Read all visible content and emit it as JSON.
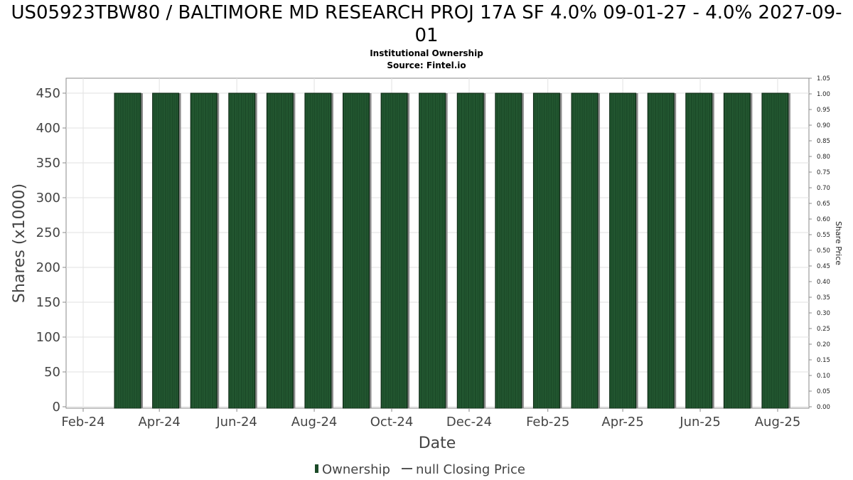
{
  "chart_data": {
    "type": "bar",
    "title": "US05923TBW80 / BALTIMORE MD RESEARCH PROJ 17A SF 4.0% 09-01-27 - 4.0% 2027-09-01",
    "subtitle_1": "Institutional Ownership",
    "subtitle_2": "Source: Fintel.io",
    "xlabel": "Date",
    "ylabel": "Shares (x1000)",
    "y2label": "Share Price",
    "ylim": [
      0,
      470
    ],
    "yticks": [
      0,
      50,
      100,
      150,
      200,
      250,
      300,
      350,
      400,
      450
    ],
    "y2lim": [
      0,
      1.05
    ],
    "y2ticks": [
      "0.00",
      "0.05",
      "0.10",
      "0.15",
      "0.20",
      "0.25",
      "0.30",
      "0.35",
      "0.40",
      "0.45",
      "0.50",
      "0.55",
      "0.60",
      "0.65",
      "0.70",
      "0.75",
      "0.80",
      "0.85",
      "0.90",
      "0.95",
      "1.00",
      "1.05"
    ],
    "x_tick_labels": [
      "Feb-24",
      "Apr-24",
      "Jun-24",
      "Aug-24",
      "Oct-24",
      "Dec-24",
      "Feb-25",
      "Apr-25",
      "Jun-25",
      "Aug-25"
    ],
    "bar_dates": [
      "2024-03-07",
      "2024-04-06",
      "2024-05-06",
      "2024-06-05",
      "2024-07-05",
      "2024-08-04",
      "2024-09-03",
      "2024-10-03",
      "2024-11-02",
      "2024-12-02",
      "2025-01-01",
      "2025-01-31",
      "2025-03-02",
      "2025-04-01",
      "2025-05-01",
      "2025-05-31",
      "2025-06-30",
      "2025-07-30"
    ],
    "series": [
      {
        "name": "Ownership",
        "color": "#1b4a28",
        "values": [
          450,
          450,
          450,
          450,
          450,
          450,
          450,
          450,
          450,
          450,
          450,
          450,
          450,
          450,
          450,
          450,
          450,
          450
        ]
      }
    ],
    "legend": {
      "position": "bottom-center",
      "items": [
        {
          "label": "Ownership",
          "marker": "bar",
          "color": "#1b4a28"
        },
        {
          "label": "null Closing Price",
          "marker": "line",
          "color": "#555555"
        }
      ]
    },
    "grid": true
  }
}
